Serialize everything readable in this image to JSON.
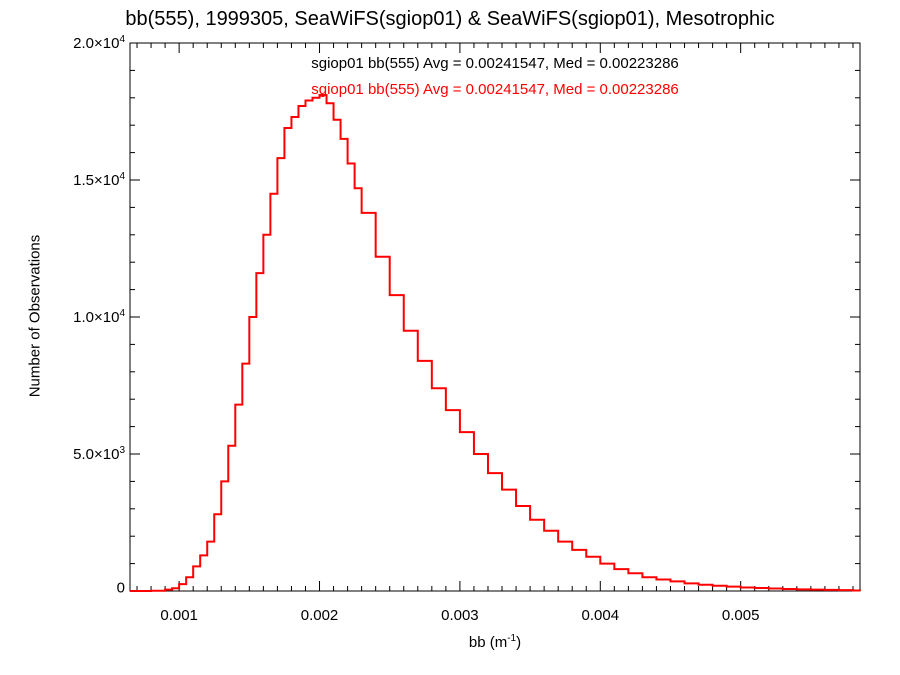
{
  "chart_data": {
    "type": "line",
    "title": "bb(555), 1999305, SeaWiFS(sgiop01) & SeaWiFS(sgiop01), Mesotrophic",
    "xlabel_base": "bb (m",
    "xlabel_sup": "-1",
    "xlabel_end": ")",
    "ylabel": "Number of Observations",
    "xlim": [
      0.00065,
      0.00585
    ],
    "ylim": [
      0,
      20000
    ],
    "xticks": [
      {
        "value": 0.001,
        "label": "0.001"
      },
      {
        "value": 0.002,
        "label": "0.002"
      },
      {
        "value": 0.003,
        "label": "0.003"
      },
      {
        "value": 0.004,
        "label": "0.004"
      },
      {
        "value": 0.005,
        "label": "0.005"
      }
    ],
    "yticks": [
      {
        "value": 0,
        "mant": "0",
        "exp": ""
      },
      {
        "value": 5000,
        "mant": "5.0×10",
        "exp": "3"
      },
      {
        "value": 10000,
        "mant": "1.0×10",
        "exp": "4"
      },
      {
        "value": 15000,
        "mant": "1.5×10",
        "exp": "4"
      },
      {
        "value": 20000,
        "mant": "2.0×10",
        "exp": "4"
      }
    ],
    "annotations": [
      {
        "text": "sgiop01 bb(555) Avg = 0.00241547, Med = 0.00223286",
        "color": "#000000"
      },
      {
        "text": "sgiop01 bb(555) Avg = 0.00241547, Med = 0.00223286",
        "color": "#ff0000"
      }
    ],
    "series": [
      {
        "color": "#ff0000",
        "x": [
          0.00065,
          0.0007,
          0.0008,
          0.0009,
          0.00095,
          0.001,
          0.00105,
          0.0011,
          0.00115,
          0.0012,
          0.00125,
          0.0013,
          0.00135,
          0.0014,
          0.00145,
          0.0015,
          0.00155,
          0.0016,
          0.00165,
          0.0017,
          0.00175,
          0.0018,
          0.00185,
          0.0019,
          0.00195,
          0.002,
          0.00205,
          0.0021,
          0.00215,
          0.0022,
          0.00225,
          0.0023,
          0.0024,
          0.0025,
          0.0026,
          0.0027,
          0.0028,
          0.0029,
          0.003,
          0.0031,
          0.0032,
          0.0033,
          0.0034,
          0.0035,
          0.0036,
          0.0037,
          0.0038,
          0.0039,
          0.004,
          0.0041,
          0.0042,
          0.0043,
          0.0044,
          0.0045,
          0.0046,
          0.0047,
          0.0048,
          0.0049,
          0.005,
          0.0051,
          0.0052,
          0.0053,
          0.0054,
          0.0055,
          0.0056,
          0.0057,
          0.0058,
          0.00585
        ],
        "y": [
          0,
          0,
          10,
          50,
          100,
          250,
          500,
          900,
          1300,
          1800,
          2800,
          4000,
          5300,
          6800,
          8300,
          10000,
          11600,
          13000,
          14500,
          15800,
          16900,
          17300,
          17700,
          17900,
          18000,
          18100,
          17800,
          17200,
          16500,
          15600,
          14700,
          13800,
          12200,
          10800,
          9500,
          8400,
          7400,
          6600,
          5800,
          5000,
          4300,
          3700,
          3100,
          2600,
          2200,
          1800,
          1500,
          1250,
          1000,
          800,
          650,
          500,
          420,
          350,
          280,
          230,
          190,
          160,
          130,
          110,
          90,
          75,
          60,
          50,
          40,
          30,
          20,
          15
        ]
      }
    ],
    "grid": false
  }
}
